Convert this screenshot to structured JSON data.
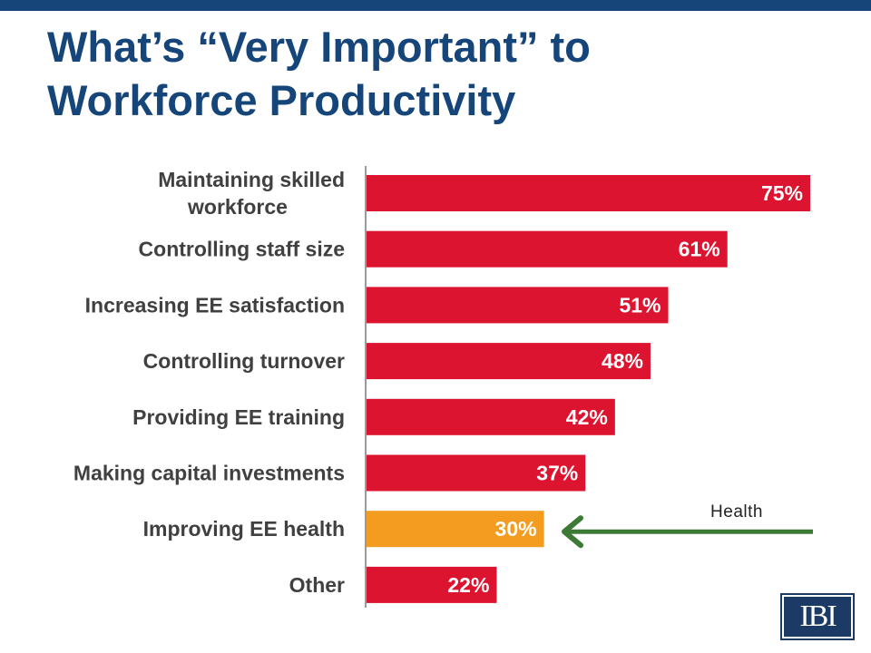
{
  "slide": {
    "title_line1": "What’s “Very Important” to",
    "title_line2": "Workforce Productivity",
    "colors": {
      "top_bar": "#16457a",
      "title": "#16457a",
      "bar": "#dc1430",
      "bar_highlight": "#f39c1f",
      "arrow": "#3d7a35",
      "logo_bg": "#1b3a66"
    },
    "logo_text": "IBI"
  },
  "chart_data": {
    "type": "bar",
    "orientation": "horizontal",
    "categories": [
      [
        "Maintaining skilled",
        "workforce"
      ],
      [
        "Controlling staff size"
      ],
      [
        "Increasing EE satisfaction"
      ],
      [
        "Controlling turnover"
      ],
      [
        "Providing EE training"
      ],
      [
        "Making capital investments"
      ],
      [
        "Improving EE health"
      ],
      [
        "Other"
      ]
    ],
    "values": [
      75,
      61,
      51,
      48,
      42,
      37,
      30,
      22
    ],
    "value_labels": [
      "75%",
      "61%",
      "51%",
      "48%",
      "42%",
      "37%",
      "30%",
      "22%"
    ],
    "highlight_index": 6,
    "xlim": [
      0,
      75
    ],
    "grid": false,
    "annotation": {
      "text": "Health",
      "arrow_icon": "left-arrow-icon",
      "target_index": 6
    }
  }
}
